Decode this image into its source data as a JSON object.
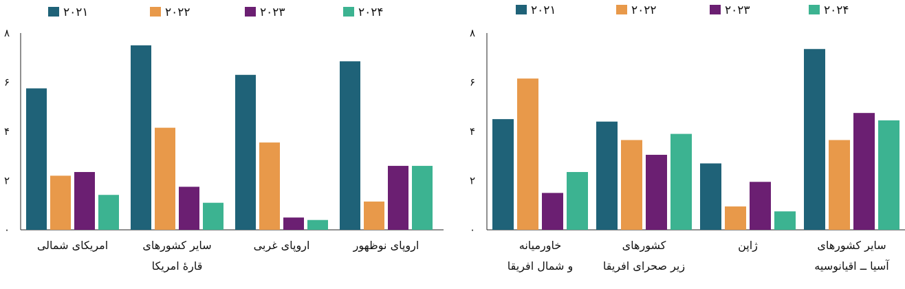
{
  "chart_data": [
    {
      "type": "bar",
      "categories": [
        [
          "امریکای شمالی"
        ],
        [
          "سایر کشورهای",
          "قارهٔ امریکا"
        ],
        [
          "اروپای غربی"
        ],
        [
          "اروپای نوظهور"
        ]
      ],
      "series": [
        {
          "name": "۲۰۲۱",
          "color": "#1f6278",
          "values": [
            5.75,
            7.5,
            6.3,
            6.85
          ]
        },
        {
          "name": "۲۰۲۲",
          "color": "#e8994a",
          "values": [
            2.2,
            4.15,
            3.55,
            1.15
          ]
        },
        {
          "name": "۲۰۲۳",
          "color": "#6b1f72",
          "values": [
            2.35,
            1.75,
            0.5,
            2.6
          ]
        },
        {
          "name": "۲۰۲۴",
          "color": "#3cb391",
          "values": [
            1.42,
            1.1,
            0.4,
            2.6
          ]
        }
      ],
      "ylim": [
        0,
        8
      ],
      "yticks": [
        "۰",
        "۲",
        "۴",
        "۶",
        "۸"
      ],
      "legend": "top",
      "grid": false
    },
    {
      "type": "bar",
      "categories": [
        [
          "خاورمیانه",
          "و شمال افریقا"
        ],
        [
          "کشورهای",
          "زیر صحرای افریقا"
        ],
        [
          "ژاپن"
        ],
        [
          "سایر کشورهای",
          "آسیا ــ اقیانوسیه"
        ]
      ],
      "series": [
        {
          "name": "۲۰۲۱",
          "color": "#1f6278",
          "values": [
            4.5,
            4.4,
            2.7,
            7.35
          ]
        },
        {
          "name": "۲۰۲۲",
          "color": "#e8994a",
          "values": [
            6.15,
            3.65,
            0.95,
            3.65
          ]
        },
        {
          "name": "۲۰۲۳",
          "color": "#6b1f72",
          "values": [
            1.5,
            3.05,
            1.95,
            4.75
          ]
        },
        {
          "name": "۲۰۲۴",
          "color": "#3cb391",
          "values": [
            2.35,
            3.9,
            0.75,
            4.45
          ]
        }
      ],
      "ylim": [
        0,
        8
      ],
      "yticks": [
        "۰",
        "۲",
        "۴",
        "۶",
        "۸"
      ],
      "legend": "top",
      "grid": false
    }
  ]
}
